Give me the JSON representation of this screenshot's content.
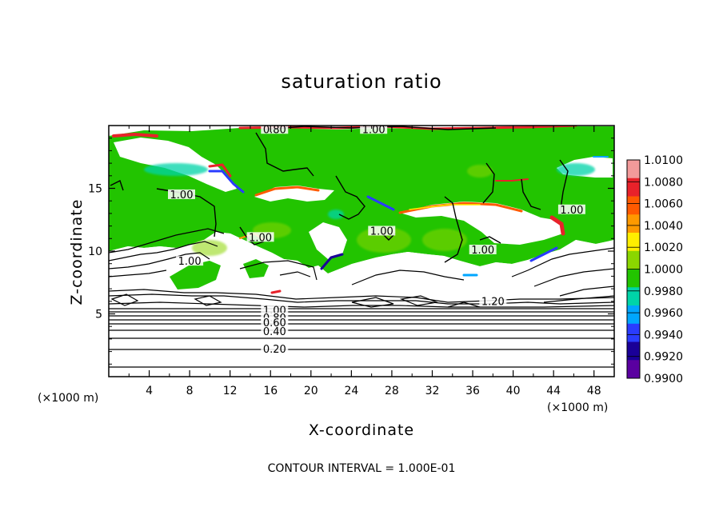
{
  "chart_data": {
    "type": "heatmap",
    "title": "saturation ratio",
    "xlabel": "X-coordinate",
    "ylabel": "Z-coordinate",
    "x_unit": "(×1000 m)",
    "y_unit": "(×1000 m)",
    "xlim": [
      0,
      50
    ],
    "ylim": [
      0,
      20
    ],
    "x_ticks": [
      4,
      8,
      12,
      16,
      20,
      24,
      28,
      32,
      36,
      40,
      44,
      48
    ],
    "y_ticks": [
      5,
      10,
      15
    ],
    "footer": "CONTOUR INTERVAL = 1.000E-01",
    "colorbar": {
      "labels": [
        "1.0100",
        "1.0080",
        "1.0060",
        "1.0040",
        "1.0020",
        "1.0000",
        "0.9980",
        "0.9960",
        "0.9940",
        "0.9920",
        "0.9900"
      ],
      "colors": [
        "#f29a9a",
        "#e8222a",
        "#ff5a00",
        "#ff9900",
        "#ffee00",
        "#8bd600",
        "#22c400",
        "#00d4a8",
        "#00a6ff",
        "#2a3cff",
        "#1a0098",
        "#5a00a0"
      ]
    },
    "contour_labels": [
      {
        "text": "0.80",
        "x": 16.4,
        "z": 19.6
      },
      {
        "text": "1.00",
        "x": 26.2,
        "z": 19.6
      },
      {
        "text": "1.00",
        "x": 7.2,
        "z": 14.4
      },
      {
        "text": "1.00",
        "x": 15.0,
        "z": 11.0
      },
      {
        "text": "1.00",
        "x": 27.0,
        "z": 11.5
      },
      {
        "text": "1.00",
        "x": 37.0,
        "z": 10.0
      },
      {
        "text": "1.00",
        "x": 45.8,
        "z": 13.2
      },
      {
        "text": "1.00",
        "x": 8.0,
        "z": 9.1
      },
      {
        "text": "1.20",
        "x": 38.0,
        "z": 5.9
      },
      {
        "text": "1.00",
        "x": 16.4,
        "z": 5.2
      },
      {
        "text": "0.80",
        "x": 16.4,
        "z": 4.6
      },
      {
        "text": "0.60",
        "x": 16.4,
        "z": 4.2
      },
      {
        "text": "0.40",
        "x": 16.4,
        "z": 3.5
      },
      {
        "text": "0.20",
        "x": 16.4,
        "z": 2.1
      }
    ]
  }
}
